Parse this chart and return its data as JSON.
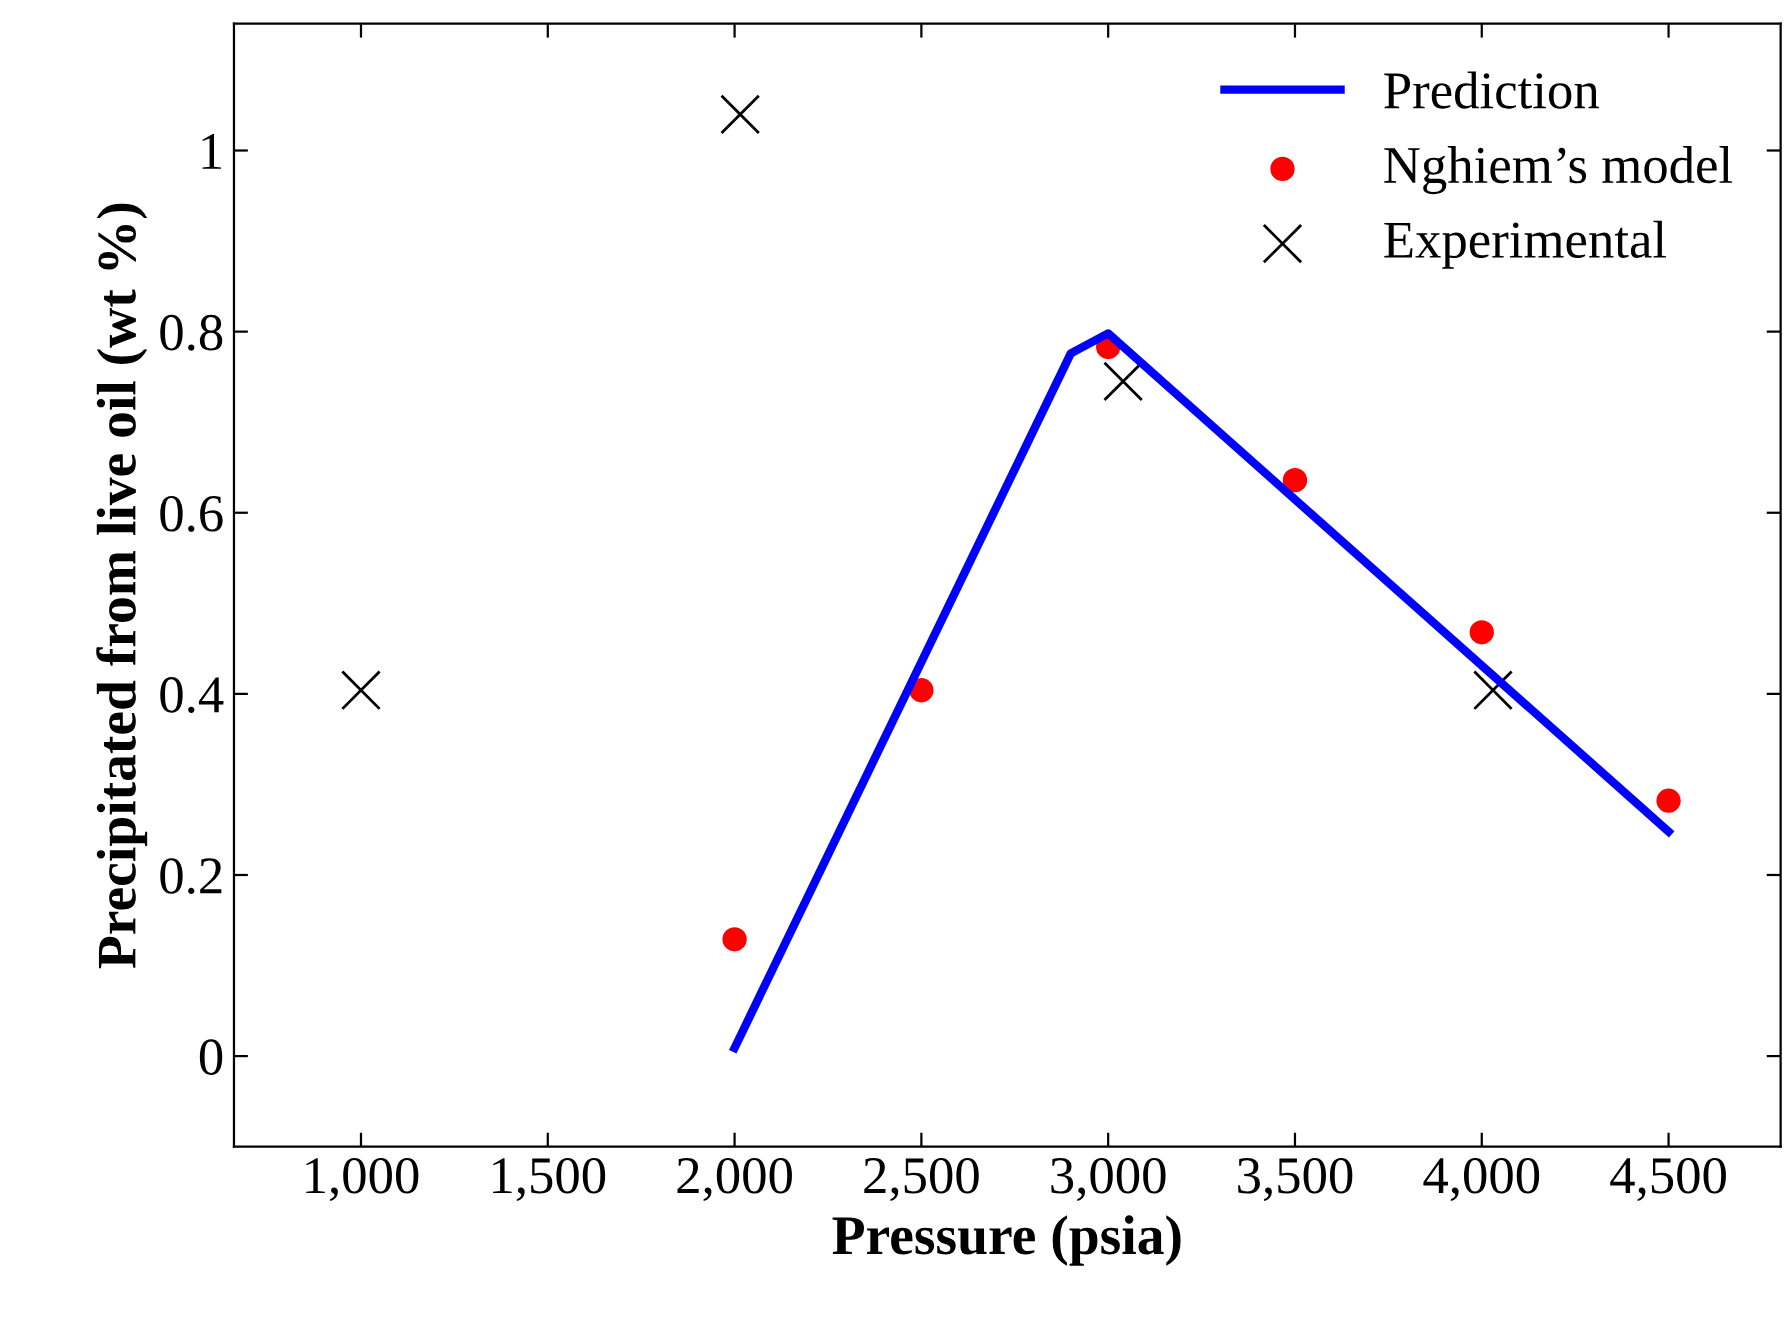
{
  "chart_data": {
    "type": "line",
    "xlabel": "Pressure (psia)",
    "ylabel": "Precipitated from live oil (wt %)",
    "xlim": [
      660,
      4800
    ],
    "ylim": [
      -0.1,
      1.14
    ],
    "xticks": [
      {
        "value": 1000,
        "label": "1,000"
      },
      {
        "value": 1500,
        "label": "1,500"
      },
      {
        "value": 2000,
        "label": "2,000"
      },
      {
        "value": 2500,
        "label": "2,500"
      },
      {
        "value": 3000,
        "label": "3,000"
      },
      {
        "value": 3500,
        "label": "3,500"
      },
      {
        "value": 4000,
        "label": "4,000"
      },
      {
        "value": 4500,
        "label": "4,500"
      }
    ],
    "yticks": [
      0,
      0.2,
      0.4,
      0.6,
      0.8,
      1
    ],
    "grid": false,
    "legend": "top right",
    "series": [
      {
        "name": "Prediction",
        "color": "#0000ff",
        "marker": "none",
        "line_style": "solid",
        "x": [
          2000,
          2900,
          3000,
          4500
        ],
        "values": [
          0.009,
          0.776,
          0.798,
          0.248
        ]
      },
      {
        "name": "Nghiem’s model",
        "type": "scatter",
        "color": "#ff0000",
        "marker": "circle",
        "x": [
          2000,
          2500,
          3000,
          3500,
          4000,
          4500
        ],
        "values": [
          0.129,
          0.404,
          0.783,
          0.636,
          0.468,
          0.282
        ]
      },
      {
        "name": "Experimental",
        "type": "scatter",
        "color": "#000000",
        "marker": "cross",
        "x": [
          1000,
          2015,
          3040,
          4030
        ],
        "values": [
          0.404,
          1.04,
          0.745,
          0.404
        ]
      }
    ]
  }
}
